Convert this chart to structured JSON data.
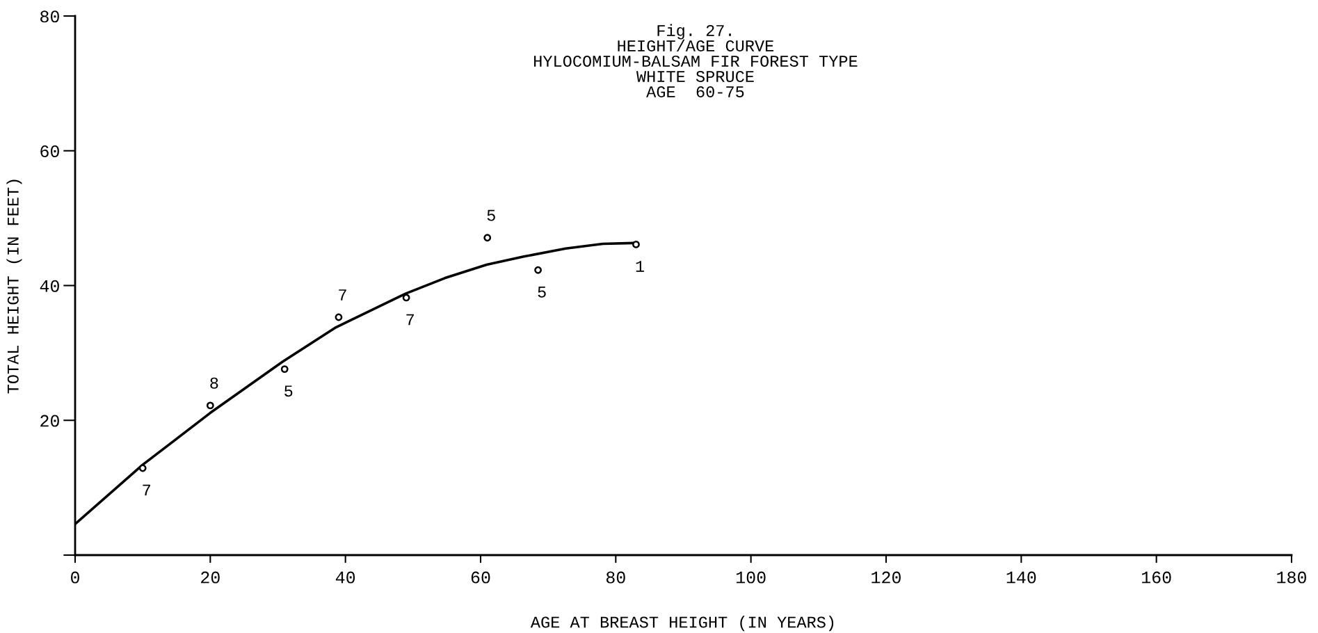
{
  "chart_data": {
    "type": "scatter",
    "title": "Fig. 27.\nHEIGHT/AGE CURVE\nHYLOCOMIUM-BALSAM FIR FOREST TYPE\nWHITE SPRUCE\nAGE  60-75",
    "xlabel": "AGE AT BREAST HEIGHT (IN YEARS)",
    "ylabel": "TOTAL HEIGHT (IN FEET)",
    "series": [
      {
        "color": "#000000",
        "marker": "circle",
        "x": [
          10,
          20,
          31,
          39,
          49,
          61,
          68.5,
          83
        ],
        "values": [
          12.9,
          22.2,
          27.6,
          35.3,
          38.2,
          47.1,
          42.3,
          46.1
        ]
      },
      {
        "type": "line",
        "color": "#000000",
        "marker": "none",
        "line_style": "solid",
        "x": [
          0,
          10,
          20,
          30.7,
          38.6,
          48.9,
          54.7,
          60.9,
          66.4,
          72.6,
          78.1,
          82.5
        ],
        "values": [
          4.6,
          13.4,
          21.1,
          28.7,
          33.8,
          38.8,
          41.1,
          43.1,
          44.3,
          45.5,
          46.2,
          46.3
        ]
      }
    ],
    "annotations": [
      {
        "text": "7",
        "x": 10,
        "y": 12.9
      },
      {
        "text": "8",
        "x": 20,
        "y": 22.2
      },
      {
        "text": "5",
        "x": 31,
        "y": 27.6
      },
      {
        "text": "7",
        "x": 39,
        "y": 35.3
      },
      {
        "text": "7",
        "x": 49,
        "y": 38.2
      },
      {
        "text": "5",
        "x": 61,
        "y": 47.1
      },
      {
        "text": "5",
        "x": 68.5,
        "y": 42.3
      },
      {
        "text": "1",
        "x": 83,
        "y": 46.1
      }
    ],
    "xlim": [
      0,
      180
    ],
    "ylim": [
      0,
      80
    ],
    "xticks": [
      0,
      20,
      40,
      60,
      80,
      100,
      120,
      140,
      160,
      180
    ],
    "yticks": [
      {
        "value": 0,
        "label": null
      },
      20,
      40,
      60,
      80
    ],
    "grid": false,
    "legend": false
  }
}
